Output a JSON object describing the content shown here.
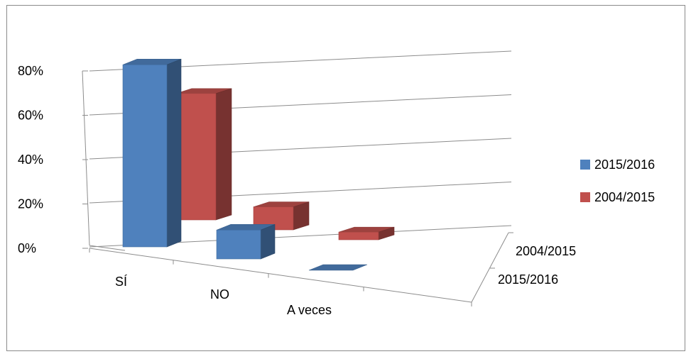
{
  "chart_data": {
    "type": "bar",
    "subtype": "3d-clustered-column",
    "title": "",
    "xlabel": "",
    "ylabel": "",
    "categories": [
      "SÍ",
      "NO",
      "A veces"
    ],
    "depth_labels": [
      "2004/2015",
      "2015/2016"
    ],
    "yticks": [
      "0%",
      "20%",
      "40%",
      "60%",
      "80%"
    ],
    "ylim": [
      0,
      80
    ],
    "y_unit": "%",
    "grid": true,
    "legend_position": "right",
    "series": [
      {
        "name": "2015/2016",
        "color": "#4F81BD",
        "values": [
          82,
          13,
          0
        ]
      },
      {
        "name": "2004/2015",
        "color": "#C0504D",
        "values": [
          66,
          12,
          4
        ]
      }
    ]
  }
}
